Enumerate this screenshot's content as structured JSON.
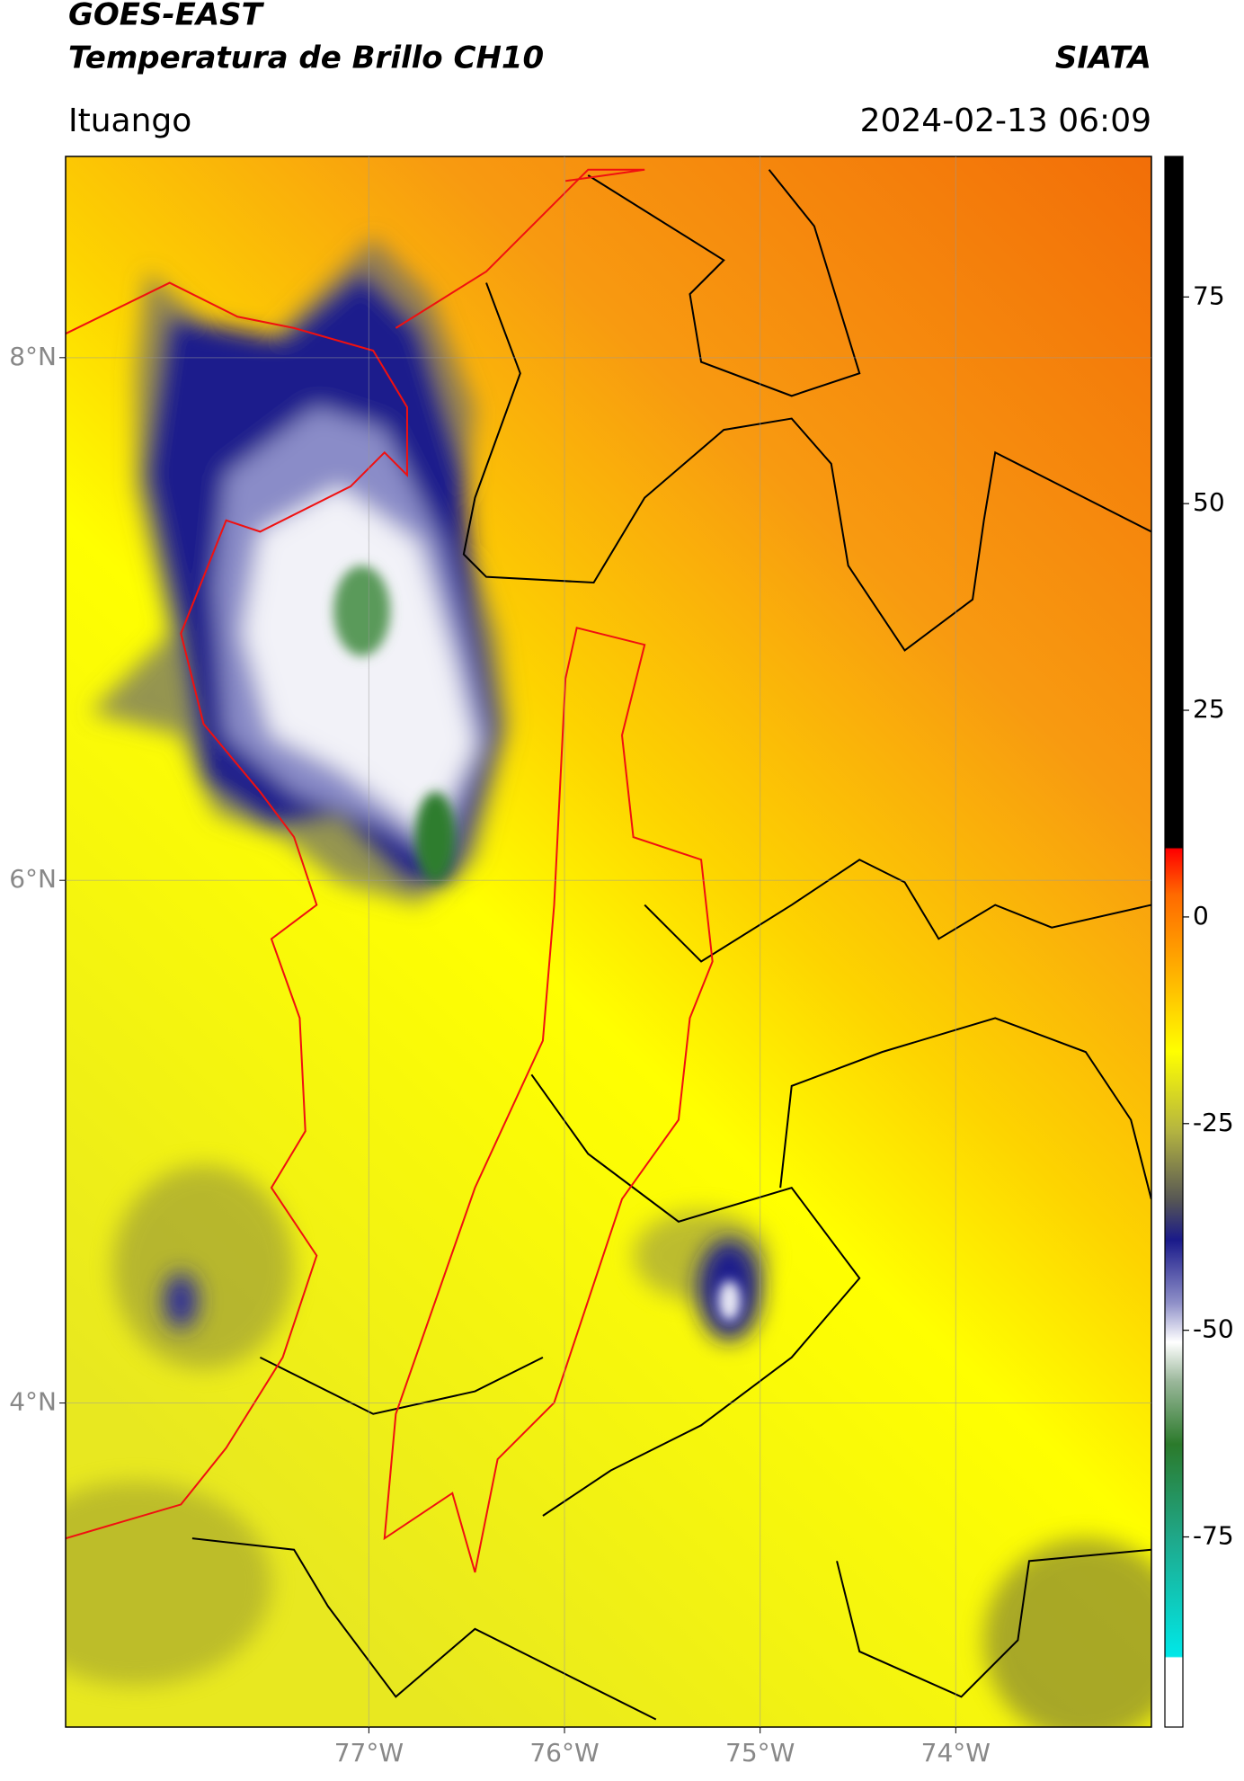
{
  "header": {
    "title": "GOES-EAST",
    "subtitle": "Temperatura de Brillo CH10",
    "brand": "SIATA",
    "location": "Ituango",
    "timestamp": "2024-02-13 06:09"
  },
  "map": {
    "xlim": [
      -78.55,
      -73.0
    ],
    "ylim": [
      2.76,
      8.77
    ],
    "xticks": [
      {
        "value": -77,
        "label": "77°W"
      },
      {
        "value": -76,
        "label": "76°W"
      },
      {
        "value": -75,
        "label": "75°W"
      },
      {
        "value": -74,
        "label": "74°W"
      }
    ],
    "yticks": [
      {
        "value": 4,
        "label": "4°N"
      },
      {
        "value": 6,
        "label": "6°N"
      },
      {
        "value": 8,
        "label": "8°N"
      }
    ],
    "grid": true
  },
  "colorbar": {
    "lim": [
      -98,
      92
    ],
    "ticks": [
      -75,
      -50,
      -25,
      0,
      25,
      50,
      75
    ]
  }
}
